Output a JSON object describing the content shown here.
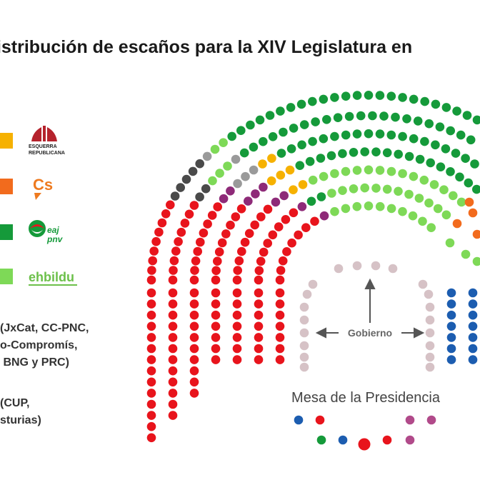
{
  "title": "listribución de escaños para la XIV Legislatura en",
  "legend": {
    "parties": [
      {
        "logo": "esquerra-republicana-logo",
        "logo_text_1": "ESQUERRA",
        "logo_text_2": "REPUBLICANA",
        "swatch_color": "#F6B100"
      },
      {
        "logo": "ciudadanos-logo",
        "logo_text": "Cs",
        "swatch_color": "#F26B1D"
      },
      {
        "logo": "eaj-pnv-logo",
        "logo_text_1": "eaj",
        "logo_text_2": "pnv",
        "swatch_color": "#159A3A"
      },
      {
        "logo": "eh-bildu-logo",
        "logo_text": "ehbildu",
        "swatch_color": "#7ED957"
      }
    ],
    "group_others_lines": [
      "(JxCat, CC-PNC,",
      "o-Compromís,",
      " BNG y PRC)"
    ],
    "group_mixed_lines": [
      "(CUP,",
      "sturias)"
    ]
  },
  "labels": {
    "gobierno": "Gobierno",
    "mesa": "Mesa de la Presidencia"
  },
  "colors": {
    "red": "#E8141C",
    "purple": "#8E2A78",
    "yellow": "#F6B100",
    "orange": "#F26B1D",
    "dark_green": "#159A3A",
    "light_green": "#7ED957",
    "gray": "#4A4A4A",
    "light_gray": "#9A9A9A",
    "blue": "#1C5DB0",
    "pink_gray": "#D6C2C6",
    "mesa_purple": "#B14A8A"
  }
}
